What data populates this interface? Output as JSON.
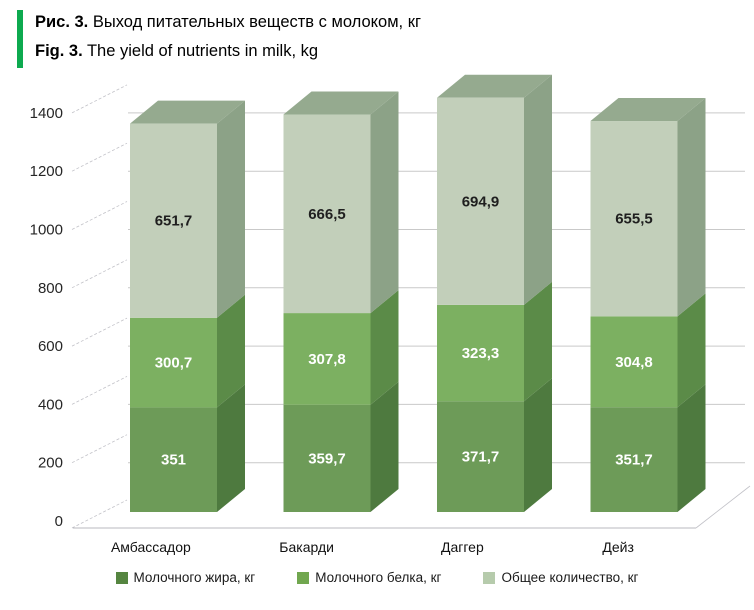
{
  "figure": {
    "accent_color": "#0daa4f",
    "title_ru_prefix": "Рис. 3.",
    "title_ru_text": " Выход питательных веществ с молоком, кг",
    "title_en_prefix": "Fig. 3.",
    "title_en_text": " The yield of nutrients in milk, kg"
  },
  "chart_data": {
    "type": "bar",
    "subtype": "stacked-3d-column",
    "title": "Выход питательных веществ с молоком, кг / The yield of nutrients in milk, kg",
    "categories": [
      "Амбассадор",
      "Бакарди",
      "Даггер",
      "Дейз"
    ],
    "series": [
      {
        "name": "Молочного жира, кг",
        "values": [
          351,
          359.7,
          371.7,
          351.7
        ],
        "labels": [
          "351",
          "359,7",
          "371,7",
          "351,7"
        ],
        "front_color": "#6d9b58",
        "side_color": "#4e7a3f",
        "legend_color": "#558540",
        "label_color": "#ffffff"
      },
      {
        "name": "Молочного белка, кг",
        "values": [
          300.7,
          307.8,
          323.3,
          304.8
        ],
        "labels": [
          "300,7",
          "307,8",
          "323,3",
          "304,8"
        ],
        "front_color": "#7cb061",
        "side_color": "#5b8b48",
        "legend_color": "#71a74f",
        "label_color": "#ffffff"
      },
      {
        "name": "Общее количество, кг",
        "values": [
          651.7,
          666.5,
          694.9,
          655.5
        ],
        "labels": [
          "651,7",
          "666,5",
          "694,9",
          "655,5"
        ],
        "front_color": "#c2cfba",
        "side_color": "#8ca287",
        "top_color": "#95aa8f",
        "legend_color": "#b6cbac",
        "label_color": "#1f1f1f"
      }
    ],
    "ylim": [
      0,
      1400
    ],
    "ytick_step": 200,
    "yticks": [
      "0",
      "200",
      "400",
      "600",
      "800",
      "1000",
      "1200",
      "1400"
    ],
    "grid": true,
    "gridline_color": "#c9c9c9",
    "axis_text_color": "#262626",
    "legend_position": "bottom"
  }
}
